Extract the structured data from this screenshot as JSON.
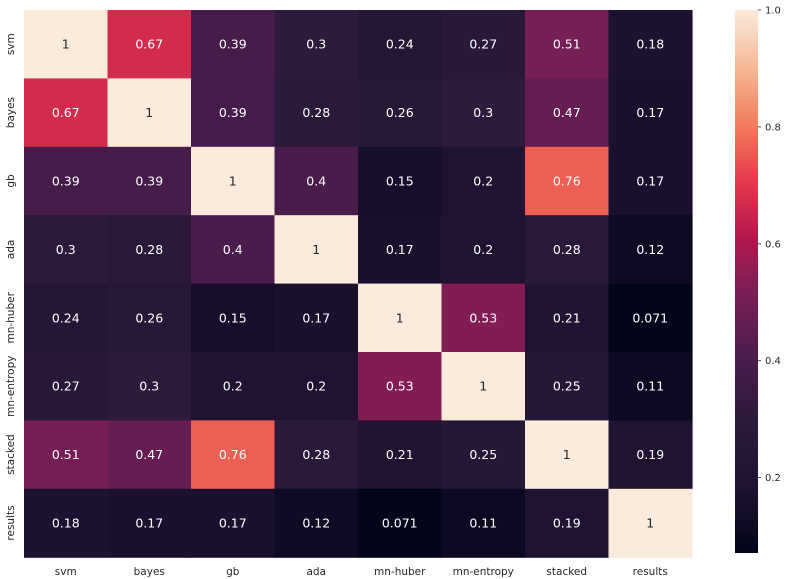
{
  "chart_data": {
    "type": "heatmap",
    "title": "",
    "xlabel": "",
    "ylabel": "",
    "colormap": "rocket",
    "value_range": [
      0.071,
      1
    ],
    "categories_x": [
      "svm",
      "bayes",
      "gb",
      "ada",
      "mn-huber",
      "mn-entropy",
      "stacked",
      "results"
    ],
    "categories_y": [
      "svm",
      "bayes",
      "gb",
      "ada",
      "mn-huber",
      "mn-entropy",
      "stacked",
      "results"
    ],
    "values": [
      [
        1,
        0.67,
        0.39,
        0.3,
        0.24,
        0.27,
        0.51,
        0.18
      ],
      [
        0.67,
        1,
        0.39,
        0.28,
        0.26,
        0.3,
        0.47,
        0.17
      ],
      [
        0.39,
        0.39,
        1,
        0.4,
        0.15,
        0.2,
        0.76,
        0.17
      ],
      [
        0.3,
        0.28,
        0.4,
        1,
        0.17,
        0.2,
        0.28,
        0.12
      ],
      [
        0.24,
        0.26,
        0.15,
        0.17,
        1,
        0.53,
        0.21,
        0.071
      ],
      [
        0.27,
        0.3,
        0.2,
        0.2,
        0.53,
        1,
        0.25,
        0.11
      ],
      [
        0.51,
        0.47,
        0.76,
        0.28,
        0.21,
        0.25,
        1,
        0.19
      ],
      [
        0.18,
        0.17,
        0.17,
        0.12,
        0.071,
        0.11,
        0.19,
        1
      ]
    ],
    "colorbar_ticks": [
      "0.2",
      "0.4",
      "0.6",
      "0.8",
      "1.0"
    ],
    "colorbar_tick_values": [
      0.2,
      0.4,
      0.6,
      0.8,
      1.0
    ],
    "grid": false,
    "colorbar_position": "right"
  }
}
